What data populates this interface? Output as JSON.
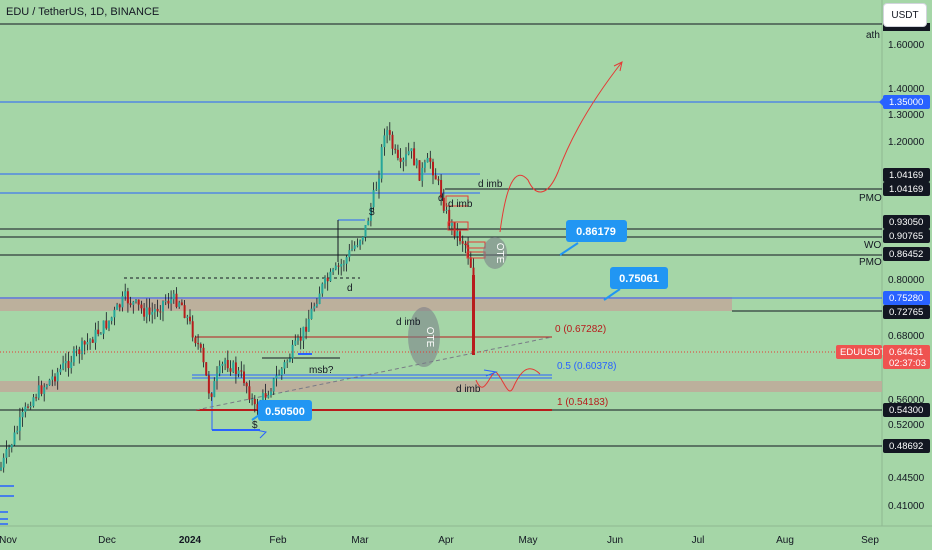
{
  "header": {
    "symbol": "EDU / TetherUS, 1D, BINANCE"
  },
  "currency_button": "USDT",
  "chart_data": {
    "type": "candlestick",
    "title": "EDU / TetherUS, 1D, BINANCE",
    "x_tick_labels": [
      "Nov",
      "Dec",
      "2024",
      "Feb",
      "Mar",
      "Apr",
      "May",
      "Jun",
      "Jul",
      "Aug",
      "Sep"
    ],
    "y_scale": "log",
    "ylim": [
      0.38,
      1.85
    ],
    "y_tick_labels": [
      "1.60000",
      "1.40000",
      "1.30000",
      "1.20000",
      "0.80000",
      "0.68000",
      "0.56000",
      "0.52000",
      "0.44500",
      "0.41000"
    ],
    "price_tags": [
      {
        "label": "1.35000",
        "color": "#2962ff"
      },
      {
        "label": "1.04169",
        "color": "#131722"
      },
      {
        "label": "1.04169",
        "color": "#131722"
      },
      {
        "label": "0.93050",
        "color": "#131722"
      },
      {
        "label": "0.90765",
        "color": "#131722"
      },
      {
        "label": "0.86452",
        "color": "#131722"
      },
      {
        "label": "0.75280",
        "color": "#2962ff"
      },
      {
        "label": "0.72765",
        "color": "#131722"
      },
      {
        "label": "0.54300",
        "color": "#131722"
      },
      {
        "label": "0.48692",
        "color": "#131722"
      }
    ],
    "current_price": {
      "symbol": "EDUUSDT",
      "value": "0.64431",
      "countdown": "02:37:03"
    },
    "annotations": [
      "ath",
      "PMO",
      "WO",
      "PMO",
      "d imb",
      "d imb",
      "d imb",
      "d imb",
      "msb?",
      "d",
      "d",
      "$",
      "$",
      "OTE",
      "OTE"
    ],
    "fib_levels": [
      {
        "label": "0 (0.67282)",
        "value": 0.67282
      },
      {
        "label": "0.5 (0.60378)",
        "value": 0.60378
      },
      {
        "label": "1 (0.54183)",
        "value": 0.54183
      }
    ],
    "callouts": [
      "0.86179",
      "0.75061",
      "0.50500"
    ]
  }
}
